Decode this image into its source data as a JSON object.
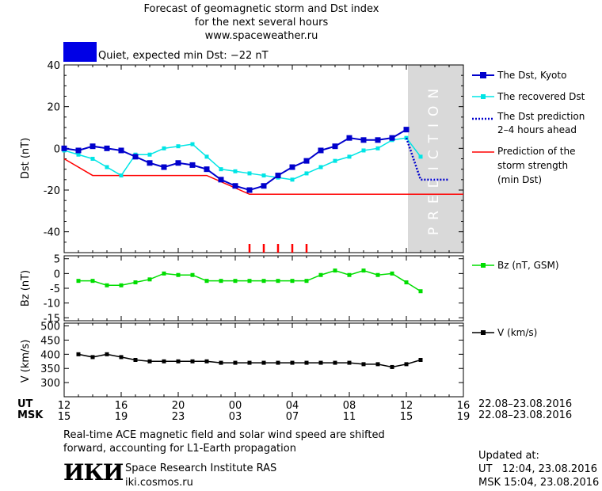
{
  "header": {
    "title_line1": "Forecast of geomagnetic storm and Dst index",
    "title_line2": "for the next several hours",
    "title_line3": "www.spaceweather.ru",
    "status_text": "Quiet, expected min Dst: −22 nT",
    "status_color": "#0000e6"
  },
  "legend": {
    "dst_kyoto": "The Dst, Kyoto",
    "dst_recovered": "The recovered Dst",
    "dst_prediction_1": "The Dst prediction",
    "dst_prediction_2": "2–4 hours ahead",
    "storm_strength_1": "Prediction of the",
    "storm_strength_2": "storm strength",
    "storm_strength_3": "(min Dst)",
    "bz": "Bz (nT, GSM)",
    "v": "V (km/s)"
  },
  "axes": {
    "dst_ylabel": "Dst (nT)",
    "bz_ylabel": "Bz (nT)",
    "v_ylabel": "V (km/s)",
    "prediction_label": "PREDICTION",
    "ut_label": "UT",
    "msk_label": "MSK",
    "ut_ticks": [
      "12",
      "16",
      "20",
      "00",
      "04",
      "08",
      "12",
      "16"
    ],
    "msk_ticks": [
      "15",
      "19",
      "23",
      "03",
      "07",
      "11",
      "15",
      "19"
    ],
    "date_range_ut": "22.08–23.08.2016",
    "date_range_msk": "22.08–23.08.2016"
  },
  "footer": {
    "note_line1": "Real-time ACE magnetic field and solar wind speed are shifted",
    "note_line2": "forward, accounting for L1-Earth propagation",
    "logo_text": "ИКИ",
    "institute": "Space Research Institute RAS",
    "website": "iki.cosmos.ru",
    "updated_label": "Updated at:",
    "updated_ut": "UT   12:04, 23.08.2016",
    "updated_msk": "MSK 15:04, 23.08.2016"
  },
  "colors": {
    "dst_kyoto": "#0000cc",
    "dst_recovered": "#00e5e5",
    "dst_prediction": "#0000cc",
    "storm_strength": "#ff0000",
    "bz": "#00dd00",
    "v": "#000000",
    "prediction_zone": "#d9d9d9"
  },
  "chart_data": [
    {
      "type": "line",
      "title": "Forecast of geomagnetic storm and Dst index",
      "xlabel": "UT hours (22.08–23.08.2016)",
      "ylabel": "Dst (nT)",
      "xlim": [
        12,
        40
      ],
      "ylim": [
        -50,
        40
      ],
      "prediction_zone_x": [
        36,
        40
      ],
      "series": [
        {
          "name": "The Dst, Kyoto",
          "x": [
            12,
            13,
            14,
            15,
            16,
            17,
            18,
            19,
            20,
            21,
            22,
            23,
            24,
            25,
            26,
            27,
            28,
            29,
            30,
            31,
            32,
            33,
            34,
            35,
            36
          ],
          "y": [
            0,
            -1,
            1,
            0,
            -1,
            -4,
            -7,
            -9,
            -7,
            -8,
            -10,
            -15,
            -18,
            -20,
            -18,
            -13,
            -9,
            -6,
            -1,
            1,
            5,
            4,
            4,
            5,
            9
          ]
        },
        {
          "name": "The recovered Dst",
          "x": [
            12,
            13,
            14,
            15,
            16,
            17,
            18,
            19,
            20,
            21,
            22,
            23,
            24,
            25,
            26,
            27,
            28,
            29,
            30,
            31,
            32,
            33,
            34,
            35,
            36,
            37
          ],
          "y": [
            -1,
            -3,
            -5,
            -9,
            -13,
            -3,
            -3,
            0,
            1,
            2,
            -4,
            -10,
            -11,
            -12,
            -13,
            -14,
            -15,
            -12,
            -9,
            -6,
            -4,
            -1,
            0,
            4,
            5,
            -4
          ]
        },
        {
          "name": "The Dst prediction 2–4 hours ahead",
          "x": [
            36,
            37,
            38,
            39
          ],
          "y": [
            5,
            -15,
            -15,
            -15
          ]
        },
        {
          "name": "Prediction of the storm strength (min Dst)",
          "x": [
            12,
            14,
            22,
            23,
            24,
            25,
            40
          ],
          "y": [
            -5,
            -13,
            -13,
            -16,
            -19,
            -22,
            -22
          ]
        }
      ],
      "storm_markers_x": [
        25,
        26,
        27,
        28,
        29
      ]
    },
    {
      "type": "line",
      "ylabel": "Bz (nT)",
      "xlim": [
        12,
        40
      ],
      "ylim": [
        -16,
        6
      ],
      "series": [
        {
          "name": "Bz (nT, GSM)",
          "x": [
            13,
            14,
            15,
            16,
            17,
            18,
            19,
            20,
            21,
            22,
            23,
            24,
            25,
            26,
            27,
            28,
            29,
            30,
            31,
            32,
            33,
            34,
            35,
            36,
            37
          ],
          "y": [
            -2.5,
            -2.5,
            -4,
            -4,
            -3,
            -2,
            0,
            -0.5,
            -0.5,
            -2.5,
            -2.5,
            -2.5,
            -2.5,
            -2.5,
            -2.5,
            -2.5,
            -2.5,
            -0.5,
            1,
            -0.5,
            1,
            -0.5,
            0,
            -3,
            -6
          ]
        }
      ]
    },
    {
      "type": "line",
      "ylabel": "V (km/s)",
      "xlim": [
        12,
        40
      ],
      "ylim": [
        250,
        510
      ],
      "series": [
        {
          "name": "V (km/s)",
          "x": [
            13,
            14,
            15,
            16,
            17,
            18,
            19,
            20,
            21,
            22,
            23,
            24,
            25,
            26,
            27,
            28,
            29,
            30,
            31,
            32,
            33,
            34,
            35,
            36,
            37
          ],
          "y": [
            400,
            390,
            400,
            390,
            380,
            375,
            375,
            375,
            375,
            375,
            370,
            370,
            370,
            370,
            370,
            370,
            370,
            370,
            370,
            370,
            365,
            365,
            355,
            365,
            380
          ]
        }
      ]
    }
  ]
}
